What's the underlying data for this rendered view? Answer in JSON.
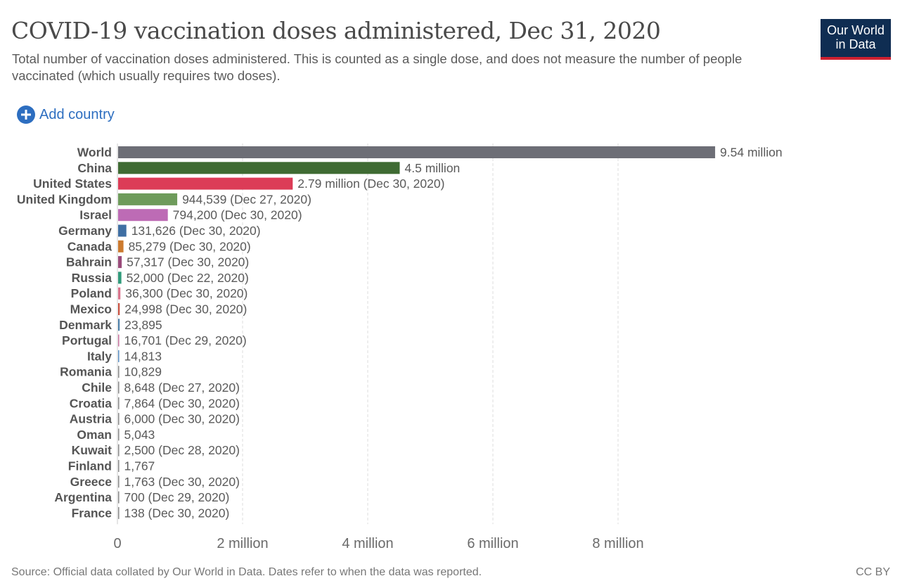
{
  "header": {
    "title": "COVID-19 vaccination doses administered, Dec 31, 2020",
    "subtitle": "Total number of vaccination doses administered. This is counted as a single dose, and does not measure the number of people vaccinated (which usually requires two doses).",
    "logo_line1": "Our World",
    "logo_line2": "in Data",
    "add_country_label": "Add country"
  },
  "footer": {
    "source": "Source: Official data collated by Our World in Data. Dates refer to when the data was reported.",
    "license": "CC BY"
  },
  "colors": {
    "logo_bg": "#0f2d52",
    "logo_accent": "#ce2030",
    "link": "#2d6ec0"
  },
  "chart_data": {
    "type": "bar",
    "orientation": "horizontal",
    "title": "COVID-19 vaccination doses administered, Dec 31, 2020",
    "xlim": [
      0,
      10000000
    ],
    "xticks": [
      {
        "value": 0,
        "label": "0"
      },
      {
        "value": 2000000,
        "label": "2 million"
      },
      {
        "value": 4000000,
        "label": "4 million"
      },
      {
        "value": 6000000,
        "label": "6 million"
      },
      {
        "value": 8000000,
        "label": "8 million"
      }
    ],
    "grid": "vertical-dashed",
    "bars": [
      {
        "category": "World",
        "value": 9540000,
        "label": "9.54 million",
        "color": "#6d6e76"
      },
      {
        "category": "China",
        "value": 4500000,
        "label": "4.5 million",
        "color": "#3f6b33"
      },
      {
        "category": "United States",
        "value": 2790000,
        "label": "2.79 million (Dec 30, 2020)",
        "color": "#dc3c57"
      },
      {
        "category": "United Kingdom",
        "value": 944539,
        "label": "944,539 (Dec 27, 2020)",
        "color": "#6e9b5b"
      },
      {
        "category": "Israel",
        "value": 794200,
        "label": "794,200 (Dec 30, 2020)",
        "color": "#bd6bb5"
      },
      {
        "category": "Germany",
        "value": 131626,
        "label": "131,626 (Dec 30, 2020)",
        "color": "#3f6fa3"
      },
      {
        "category": "Canada",
        "value": 85279,
        "label": "85,279 (Dec 30, 2020)",
        "color": "#cc7a2e"
      },
      {
        "category": "Bahrain",
        "value": 57317,
        "label": "57,317 (Dec 30, 2020)",
        "color": "#9a4a7a"
      },
      {
        "category": "Russia",
        "value": 52000,
        "label": "52,000 (Dec 22, 2020)",
        "color": "#2f9a7a"
      },
      {
        "category": "Poland",
        "value": 36300,
        "label": "36,300 (Dec 30, 2020)",
        "color": "#d9738b"
      },
      {
        "category": "Mexico",
        "value": 24998,
        "label": "24,998 (Dec 30, 2020)",
        "color": "#c9503f"
      },
      {
        "category": "Denmark",
        "value": 23895,
        "label": "23,895",
        "color": "#4a7ea8"
      },
      {
        "category": "Portugal",
        "value": 16701,
        "label": "16,701 (Dec 29, 2020)",
        "color": "#c9739f"
      },
      {
        "category": "Italy",
        "value": 14813,
        "label": "14,813",
        "color": "#5a8fc4"
      },
      {
        "category": "Romania",
        "value": 10829,
        "label": "10,829",
        "color": "#8a8a8a"
      },
      {
        "category": "Chile",
        "value": 8648,
        "label": "8,648 (Dec 27, 2020)",
        "color": "#8a8a8a"
      },
      {
        "category": "Croatia",
        "value": 7864,
        "label": "7,864 (Dec 30, 2020)",
        "color": "#8a8a8a"
      },
      {
        "category": "Austria",
        "value": 6000,
        "label": "6,000 (Dec 30, 2020)",
        "color": "#8a8a8a"
      },
      {
        "category": "Oman",
        "value": 5043,
        "label": "5,043",
        "color": "#8a8a8a"
      },
      {
        "category": "Kuwait",
        "value": 2500,
        "label": "2,500 (Dec 28, 2020)",
        "color": "#8a8a8a"
      },
      {
        "category": "Finland",
        "value": 1767,
        "label": "1,767",
        "color": "#8a8a8a"
      },
      {
        "category": "Greece",
        "value": 1763,
        "label": "1,763 (Dec 30, 2020)",
        "color": "#8a8a8a"
      },
      {
        "category": "Argentina",
        "value": 700,
        "label": "700 (Dec 29, 2020)",
        "color": "#8a8a8a"
      },
      {
        "category": "France",
        "value": 138,
        "label": "138 (Dec 30, 2020)",
        "color": "#8a8a8a"
      }
    ]
  }
}
